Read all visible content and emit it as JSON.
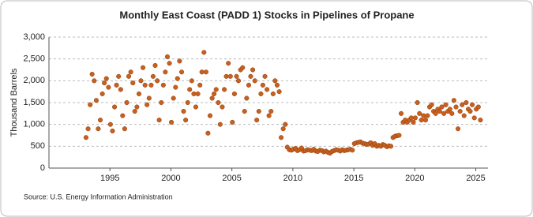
{
  "chart_data": {
    "type": "scatter",
    "title": "Monthly East Coast (PADD 1) Stocks in Pipelines of Propane",
    "y_label": "Thousand Barrels",
    "source": "Source: U.S. Energy Information Administration",
    "color": "#c8601e",
    "grid": true,
    "xlim": [
      1990,
      2026
    ],
    "xticks": [
      1995,
      2000,
      2005,
      2010,
      2015,
      2020,
      2025
    ],
    "ylim": [
      0,
      3000
    ],
    "yticks": [
      0,
      500,
      {
        "value": 1000,
        "label": "1,000"
      },
      {
        "value": 1500,
        "label": "1,500"
      },
      {
        "value": 2000,
        "label": "2,000"
      },
      {
        "value": 2500,
        "label": "2,500"
      },
      {
        "value": 3000,
        "label": "3,000"
      }
    ],
    "x": [
      1993.04,
      1993.21,
      1993.38,
      1993.54,
      1993.71,
      1993.88,
      1994.04,
      1994.21,
      1994.38,
      1994.54,
      1994.71,
      1994.88,
      1995.04,
      1995.21,
      1995.38,
      1995.54,
      1995.71,
      1995.88,
      1996.04,
      1996.21,
      1996.38,
      1996.54,
      1996.71,
      1996.88,
      1997.04,
      1997.21,
      1997.38,
      1997.54,
      1997.71,
      1997.88,
      1998.04,
      1998.21,
      1998.38,
      1998.54,
      1998.71,
      1998.88,
      1999.04,
      1999.21,
      1999.38,
      1999.54,
      1999.71,
      1999.88,
      2000.04,
      2000.21,
      2000.38,
      2000.54,
      2000.71,
      2000.88,
      2001.04,
      2001.21,
      2001.38,
      2001.54,
      2001.71,
      2001.88,
      2002.04,
      2002.21,
      2002.38,
      2002.54,
      2002.71,
      2002.88,
      2003.04,
      2003.21,
      2003.38,
      2003.54,
      2003.71,
      2003.88,
      2004.04,
      2004.21,
      2004.38,
      2004.54,
      2004.71,
      2004.88,
      2005.04,
      2005.21,
      2005.38,
      2005.54,
      2005.71,
      2005.88,
      2006.04,
      2006.21,
      2006.38,
      2006.54,
      2006.71,
      2006.88,
      2007.04,
      2007.21,
      2007.38,
      2007.54,
      2007.71,
      2007.88,
      2008.04,
      2008.21,
      2008.38,
      2008.54,
      2008.71,
      2008.88,
      2009.04,
      2009.21,
      2009.38,
      2009.54,
      2009.71,
      2009.88,
      2010.04,
      2010.21,
      2010.38,
      2010.54,
      2010.71,
      2010.88,
      2011.04,
      2011.21,
      2011.38,
      2011.54,
      2011.71,
      2011.88,
      2012.04,
      2012.21,
      2012.38,
      2012.54,
      2012.71,
      2012.88,
      2013.04,
      2013.21,
      2013.38,
      2013.54,
      2013.71,
      2013.88,
      2014.04,
      2014.21,
      2014.38,
      2014.54,
      2014.71,
      2014.88,
      2015.04,
      2015.21,
      2015.38,
      2015.54,
      2015.71,
      2015.88,
      2016.04,
      2016.21,
      2016.38,
      2016.54,
      2016.71,
      2016.88,
      2017.04,
      2017.21,
      2017.38,
      2017.54,
      2017.71,
      2017.88,
      2018.04,
      2018.21,
      2018.38,
      2018.54,
      2018.71,
      2018.88,
      2019.04,
      2019.21,
      2019.38,
      2019.54,
      2019.71,
      2019.88,
      2020.04,
      2020.21,
      2020.38,
      2020.54,
      2020.71,
      2020.88,
      2021.04,
      2021.21,
      2021.38,
      2021.54,
      2021.71,
      2021.88,
      2022.04,
      2022.21,
      2022.38,
      2022.54,
      2022.71,
      2022.88,
      2023.04,
      2023.21,
      2023.38,
      2023.54,
      2023.71,
      2023.88,
      2024.04,
      2024.21,
      2024.38,
      2024.54,
      2024.71,
      2024.88,
      2025.04,
      2025.21,
      2025.38
    ],
    "values": [
      700,
      900,
      1450,
      2150,
      2000,
      1550,
      900,
      1100,
      1700,
      1950,
      2050,
      1850,
      1000,
      850,
      1400,
      1900,
      2100,
      1800,
      1200,
      900,
      1500,
      2100,
      2200,
      1950,
      1300,
      1400,
      1700,
      2000,
      2300,
      1900,
      1450,
      1600,
      1900,
      2100,
      2350,
      2000,
      1100,
      1500,
      1900,
      2200,
      2550,
      2400,
      1050,
      1600,
      1850,
      2050,
      2450,
      2200,
      1300,
      1100,
      1500,
      1800,
      2000,
      1700,
      1400,
      1700,
      1900,
      2200,
      2650,
      2200,
      800,
      1200,
      1600,
      1700,
      1800,
      1500,
      1000,
      1400,
      1800,
      2100,
      2400,
      2100,
      1050,
      1700,
      2100,
      2000,
      2250,
      2300,
      1300,
      1600,
      1900,
      2100,
      2250,
      2000,
      1100,
      1300,
      1700,
      1900,
      2100,
      1800,
      1200,
      1300,
      1700,
      2000,
      1900,
      1750,
      700,
      900,
      1000,
      480,
      420,
      410,
      430,
      450,
      400,
      420,
      460,
      390,
      400,
      420,
      410,
      400,
      430,
      390,
      380,
      410,
      400,
      370,
      390,
      360,
      340,
      380,
      400,
      420,
      410,
      390,
      420,
      400,
      410,
      420,
      430,
      410,
      560,
      580,
      590,
      600,
      570,
      560,
      540,
      550,
      580,
      520,
      560,
      500,
      520,
      500,
      540,
      520,
      490,
      510,
      500,
      700,
      730,
      740,
      750,
      1250,
      1050,
      1100,
      1050,
      1100,
      1150,
      1050,
      1150,
      1500,
      1250,
      1100,
      1200,
      1100,
      1200,
      1400,
      1450,
      1300,
      1250,
      1350,
      1300,
      1400,
      1250,
      1450,
      1300,
      1350,
      1250,
      1550,
      1400,
      900,
      1300,
      1450,
      1200,
      1500,
      1350,
      1300,
      1450,
      1150,
      1350,
      1400,
      1100
    ]
  }
}
